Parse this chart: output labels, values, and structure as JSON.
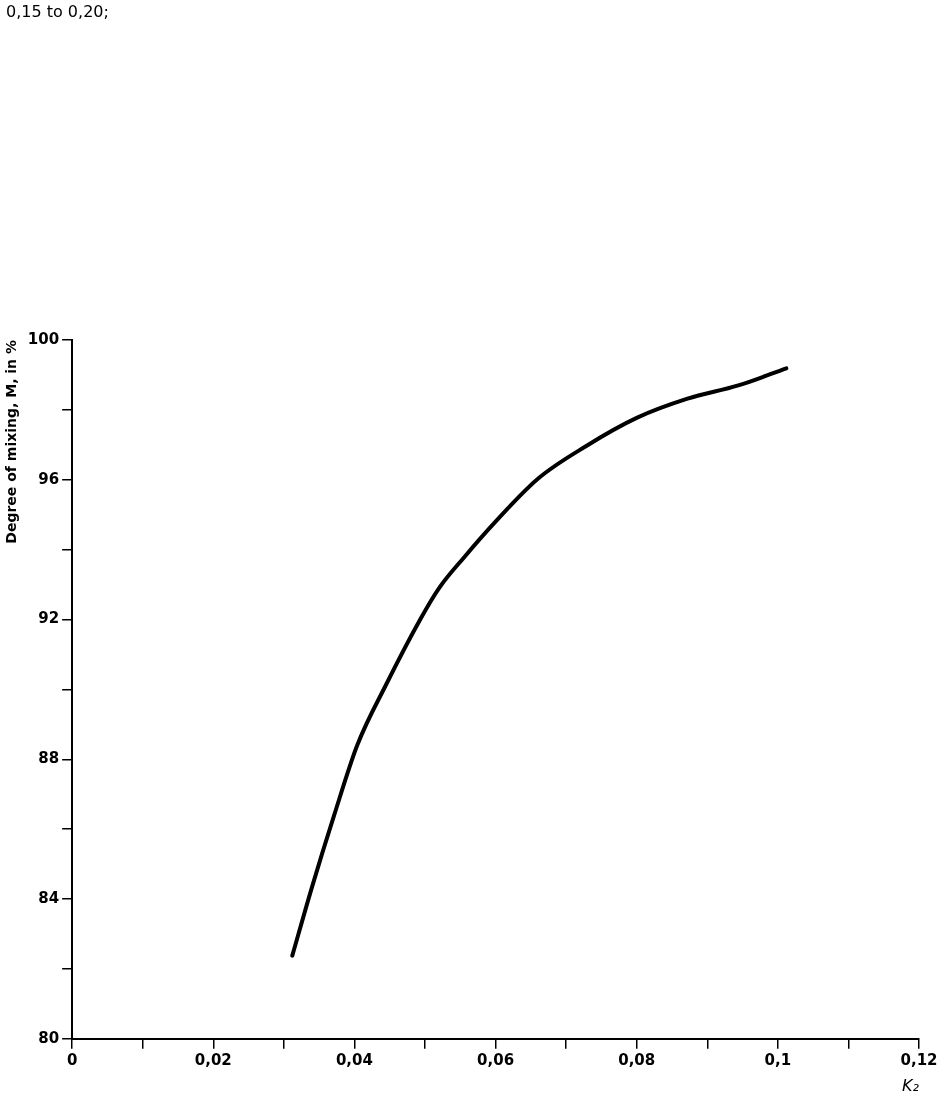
{
  "chart_data": {
    "type": "line",
    "xlabel": "K₂",
    "ylabel": "Degree of mixing, M, in %",
    "annotations": [
      "0,15 to 0,20;"
    ],
    "xlim": [
      0,
      0.12
    ],
    "xticks": [
      {
        "value": 0,
        "label": "0"
      },
      {
        "value": 0.01,
        "label": null
      },
      {
        "value": 0.02,
        "label": "0,02"
      },
      {
        "value": 0.03,
        "label": null
      },
      {
        "value": 0.04,
        "label": "0,04"
      },
      {
        "value": 0.05,
        "label": null
      },
      {
        "value": 0.06,
        "label": "0,06"
      },
      {
        "value": 0.07,
        "label": null
      },
      {
        "value": 0.08,
        "label": "0,08"
      },
      {
        "value": 0.09,
        "label": null
      },
      {
        "value": 0.1,
        "label": "0,1"
      },
      {
        "value": 0.11,
        "label": null
      },
      {
        "value": 0.12,
        "label": "0,12"
      }
    ],
    "ylim": [
      80,
      100
    ],
    "yticks": [
      80,
      {
        "value": 82,
        "label": null
      },
      84,
      {
        "value": 86,
        "label": null
      },
      88,
      {
        "value": 90,
        "label": null
      },
      92,
      {
        "value": 94,
        "label": null
      },
      96,
      {
        "value": 98,
        "label": null
      },
      100
    ],
    "grid": false,
    "legend": false,
    "marker": "none",
    "line_style": "solid",
    "series": [
      {
        "color": "#000000",
        "x": [
          0.0312,
          0.034,
          0.0371,
          0.0404,
          0.0445,
          0.0494,
          0.052,
          0.0555,
          0.0599,
          0.066,
          0.0728,
          0.08,
          0.0872,
          0.0944,
          0.1012
        ],
        "values": [
          82.38,
          84.35,
          86.38,
          88.4,
          90.14,
          92.03,
          92.9,
          93.77,
          94.78,
          96.03,
          96.96,
          97.77,
          98.32,
          98.7,
          99.19
        ]
      }
    ]
  }
}
